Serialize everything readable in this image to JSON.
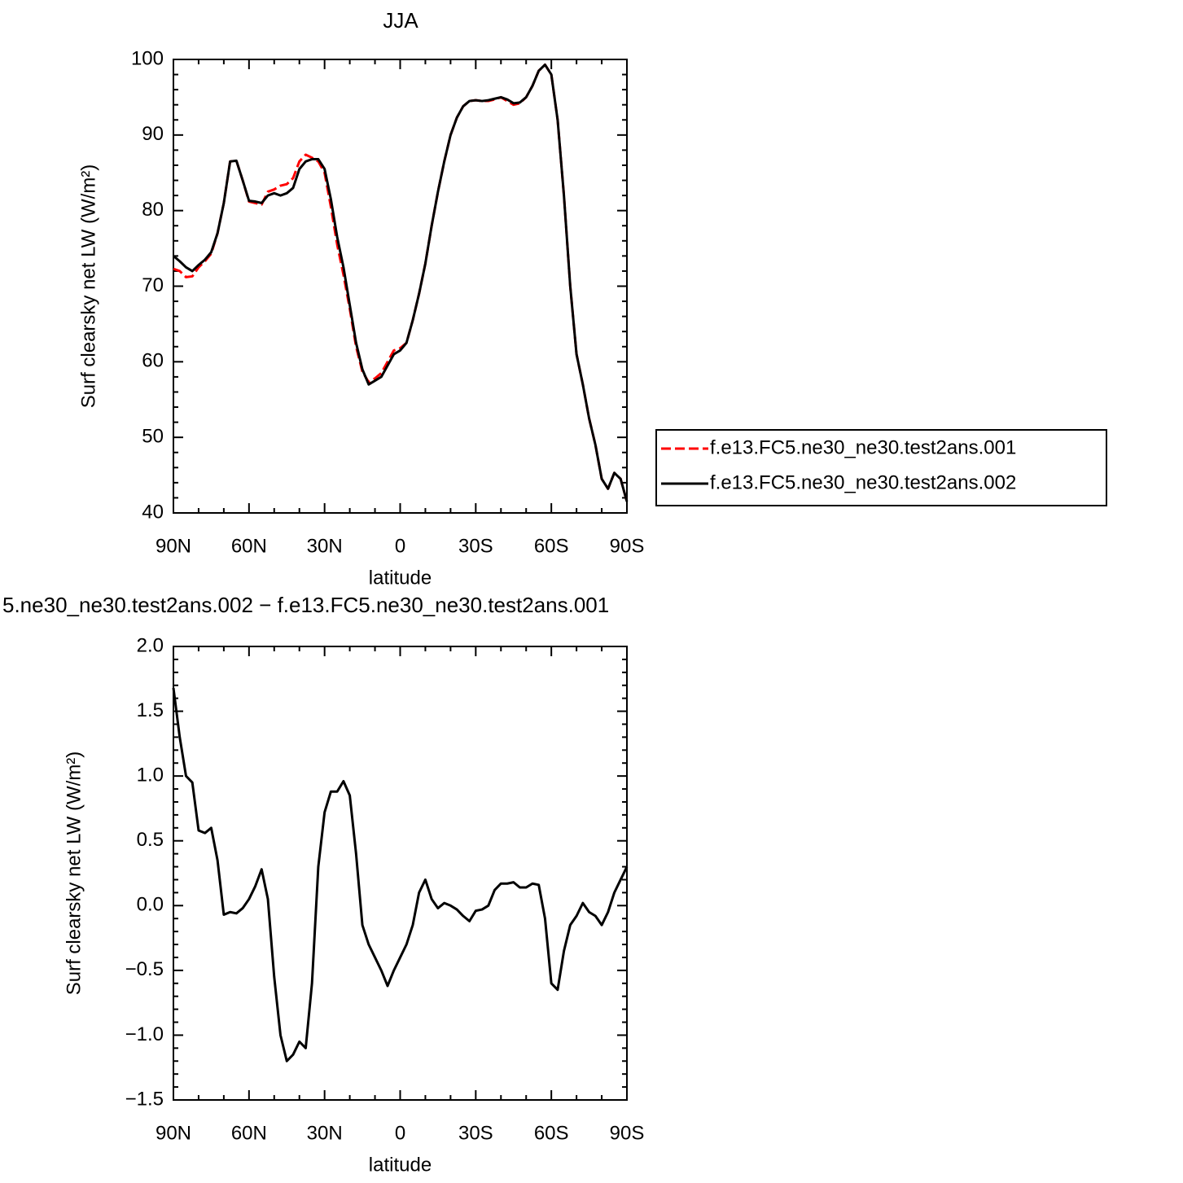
{
  "chart_data": [
    {
      "type": "line",
      "title": "JJA",
      "xlabel": "latitude",
      "ylabel": "Surf clearsky net LW (W/m²)",
      "x": [
        90,
        87.5,
        85,
        82.5,
        80,
        77.5,
        75,
        72.5,
        70,
        67.5,
        65,
        62.5,
        60,
        57.5,
        55,
        52.5,
        50,
        47.5,
        45,
        42.5,
        40,
        37.5,
        35,
        32.5,
        30,
        27.5,
        25,
        22.5,
        20,
        17.5,
        15,
        12.5,
        10,
        7.5,
        5,
        2.5,
        0,
        -2.5,
        -5,
        -7.5,
        -10,
        -12.5,
        -15,
        -17.5,
        -20,
        -22.5,
        -25,
        -27.5,
        -30,
        -32.5,
        -35,
        -37.5,
        -40,
        -42.5,
        -45,
        -47.5,
        -50,
        -52.5,
        -55,
        -57.5,
        -60,
        -62.5,
        -65,
        -67.5,
        -70,
        -72.5,
        -75,
        -77.5,
        -80,
        -82.5,
        -85,
        -87.5,
        -90
      ],
      "series": [
        {
          "name": "f.e13.FC5.ne30_ne30.test2ans.001",
          "color": "#ff0000",
          "linestyle": "dashed",
          "values": [
            72.3,
            72.0,
            71.2,
            71.3,
            72.5,
            73.3,
            74.3,
            77,
            81,
            86.5,
            86.6,
            84,
            81.2,
            81.0,
            80.8,
            82.5,
            82.8,
            83.3,
            83.5,
            84.3,
            86.5,
            87.4,
            87.0,
            86.5,
            85,
            80.5,
            75.5,
            71.5,
            67,
            62,
            58.7,
            57.3,
            57.8,
            58.5,
            60,
            61.5,
            61.8,
            62.5,
            65.5,
            69,
            73,
            78,
            82.5,
            86.5,
            90,
            92.3,
            93.8,
            94.5,
            94.6,
            94.5,
            94.5,
            94.7,
            95.0,
            94.5,
            94.0,
            94.2,
            95,
            96.5,
            98.5,
            99.3,
            98,
            92,
            82,
            70,
            61,
            57,
            52.5,
            49,
            44.5,
            43.2,
            45.3,
            44.5,
            41.5
          ]
        },
        {
          "name": "f.e13.FC5.ne30_ne30.test2ans.002",
          "color": "#000000",
          "linestyle": "solid",
          "values": [
            74.0,
            73.3,
            72.5,
            72.0,
            72.8,
            73.5,
            74.5,
            77,
            81,
            86.5,
            86.6,
            84,
            81.3,
            81.2,
            81.0,
            82,
            82.3,
            82.0,
            82.3,
            83,
            85.5,
            86.5,
            86.8,
            86.8,
            85.5,
            81.5,
            76.5,
            72.5,
            67.5,
            62.5,
            59,
            57,
            57.5,
            58,
            59.5,
            61,
            61.5,
            62.5,
            65.5,
            69,
            73,
            78,
            82.5,
            86.5,
            90,
            92.3,
            93.8,
            94.5,
            94.6,
            94.5,
            94.6,
            94.8,
            95.0,
            94.7,
            94.2,
            94.3,
            95,
            96.5,
            98.5,
            99.3,
            98,
            92,
            82,
            70,
            61,
            57,
            52.5,
            49,
            44.5,
            43.2,
            45.3,
            44.5,
            41.5
          ]
        }
      ],
      "xlim": [
        90,
        -90
      ],
      "xticks": [
        {
          "value": 90,
          "label": "90N"
        },
        {
          "value": 60,
          "label": "60N"
        },
        {
          "value": 30,
          "label": "30N"
        },
        0,
        {
          "value": -30,
          "label": "30S"
        },
        {
          "value": -60,
          "label": "60S"
        },
        {
          "value": -90,
          "label": "90S"
        }
      ],
      "ylim": [
        40,
        100
      ],
      "yticks": [
        40,
        50,
        60,
        70,
        80,
        90,
        100
      ],
      "legend": "right"
    },
    {
      "type": "line",
      "title": "5.ne30_ne30.test2ans.002 − f.e13.FC5.ne30_ne30.test2ans.001",
      "xlabel": "latitude",
      "ylabel": "Surf clearsky net LW (W/m²)",
      "x": [
        90,
        87.5,
        85,
        82.5,
        80,
        77.5,
        75,
        72.5,
        70,
        67.5,
        65,
        62.5,
        60,
        57.5,
        55,
        52.5,
        50,
        47.5,
        45,
        42.5,
        40,
        37.5,
        35,
        32.5,
        30,
        27.5,
        25,
        22.5,
        20,
        17.5,
        15,
        12.5,
        10,
        7.5,
        5,
        2.5,
        0,
        -2.5,
        -5,
        -7.5,
        -10,
        -12.5,
        -15,
        -17.5,
        -20,
        -22.5,
        -25,
        -27.5,
        -30,
        -32.5,
        -35,
        -37.5,
        -40,
        -42.5,
        -45,
        -47.5,
        -50,
        -52.5,
        -55,
        -57.5,
        -60,
        -62.5,
        -65,
        -67.5,
        -70,
        -72.5,
        -75,
        -77.5,
        -80,
        -82.5,
        -85,
        -87.5,
        -90
      ],
      "series": [
        {
          "color": "#000000",
          "linestyle": "solid",
          "values": [
            1.68,
            1.3,
            1.0,
            0.95,
            0.58,
            0.56,
            0.6,
            0.35,
            -0.07,
            -0.05,
            -0.06,
            -0.02,
            0.05,
            0.15,
            0.28,
            0.05,
            -0.55,
            -1.0,
            -1.2,
            -1.15,
            -1.05,
            -1.1,
            -0.6,
            0.3,
            0.72,
            0.88,
            0.88,
            0.96,
            0.85,
            0.4,
            -0.15,
            -0.3,
            -0.4,
            -0.5,
            -0.62,
            -0.5,
            -0.4,
            -0.3,
            -0.15,
            0.1,
            0.2,
            0.05,
            -0.02,
            0.02,
            0.0,
            -0.03,
            -0.08,
            -0.12,
            -0.04,
            -0.03,
            0.0,
            0.12,
            0.17,
            0.17,
            0.18,
            0.14,
            0.14,
            0.17,
            0.16,
            -0.1,
            -0.6,
            -0.65,
            -0.35,
            -0.15,
            -0.08,
            0.02,
            -0.05,
            -0.08,
            -0.15,
            -0.05,
            0.1,
            0.2,
            0.3
          ]
        }
      ],
      "xlim": [
        90,
        -90
      ],
      "xticks": [
        {
          "value": 90,
          "label": "90N"
        },
        {
          "value": 60,
          "label": "60N"
        },
        {
          "value": 30,
          "label": "30N"
        },
        0,
        {
          "value": -30,
          "label": "30S"
        },
        {
          "value": -60,
          "label": "60S"
        },
        {
          "value": -90,
          "label": "90S"
        }
      ],
      "ylim": [
        -1.5,
        2.0
      ],
      "yticks": [
        {
          "value": -1.5,
          "label": "−1.5"
        },
        {
          "value": -1.0,
          "label": "−1.0"
        },
        {
          "value": -0.5,
          "label": "−0.5"
        },
        {
          "value": 0,
          "label": "0.0"
        },
        0.5,
        {
          "value": 1,
          "label": "1.0"
        },
        1.5,
        {
          "value": 2,
          "label": "2.0"
        }
      ]
    }
  ]
}
